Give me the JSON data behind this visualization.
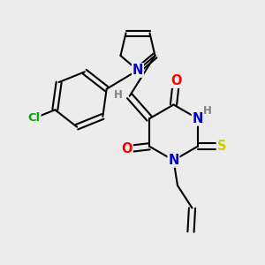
{
  "bg_color": "#ececec",
  "bond_color": "#000000",
  "bond_width": 1.5,
  "atom_colors": {
    "N": "#0000cc",
    "O": "#ff0000",
    "S": "#cccc00",
    "Cl": "#00aa00",
    "H": "#808080",
    "C": "#000000"
  },
  "font_size": 9.5
}
